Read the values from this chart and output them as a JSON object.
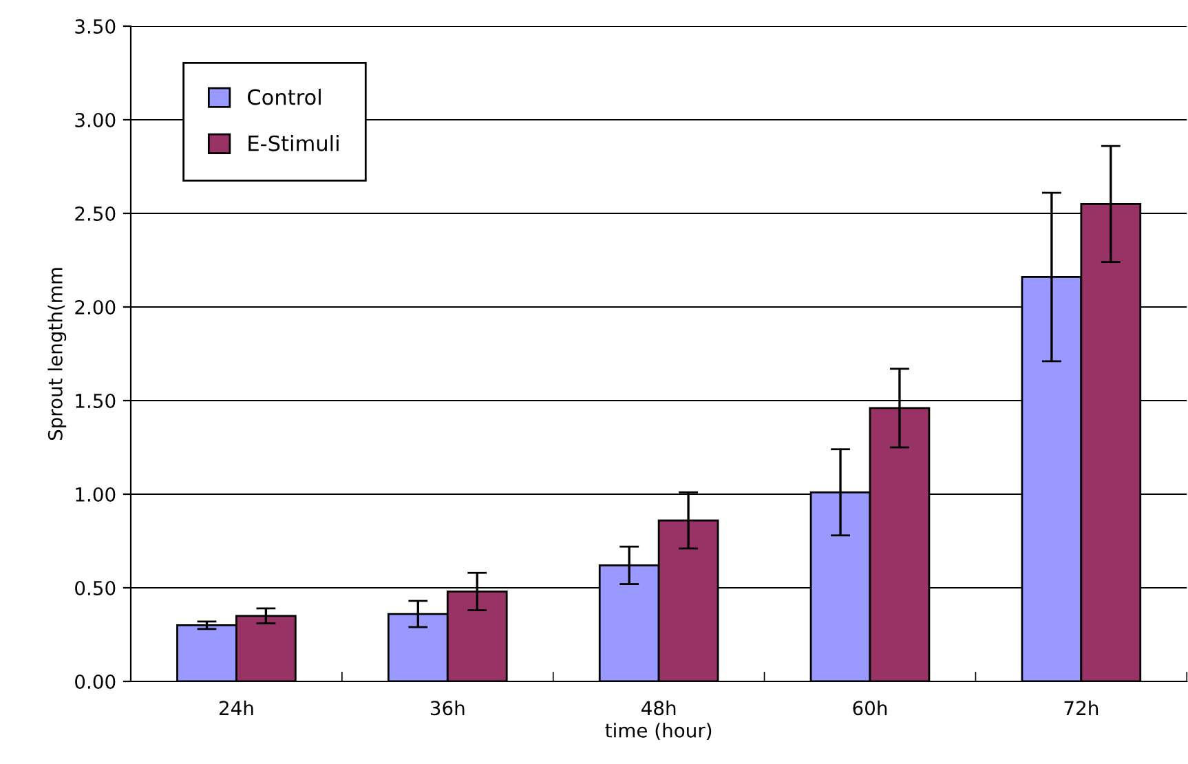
{
  "chart_data": {
    "type": "bar",
    "xlabel": "time (hour)",
    "ylabel": "Sprout length(mm",
    "categories": [
      "24h",
      "36h",
      "48h",
      "60h",
      "72h"
    ],
    "series": [
      {
        "name": "Control",
        "color": "#9999ff",
        "values": [
          0.3,
          0.36,
          0.62,
          1.01,
          2.16
        ],
        "errors": [
          0.02,
          0.07,
          0.1,
          0.23,
          0.45
        ]
      },
      {
        "name": "E-Stimuli",
        "color": "#993366",
        "values": [
          0.35,
          0.48,
          0.86,
          1.46,
          2.55
        ],
        "errors": [
          0.04,
          0.1,
          0.15,
          0.21,
          0.31
        ]
      }
    ],
    "ylim": [
      0,
      3.5
    ],
    "yticks": [
      {
        "value": 0,
        "label": "0.00"
      },
      {
        "value": 0.5,
        "label": "0.50"
      },
      {
        "value": 1,
        "label": "1.00"
      },
      {
        "value": 1.5,
        "label": "1.50"
      },
      {
        "value": 2,
        "label": "2.00"
      },
      {
        "value": 2.5,
        "label": "2.50"
      },
      {
        "value": 3,
        "label": "3.00"
      },
      {
        "value": 3.5,
        "label": "3.50"
      }
    ],
    "grid": "y",
    "legend": "top left"
  }
}
